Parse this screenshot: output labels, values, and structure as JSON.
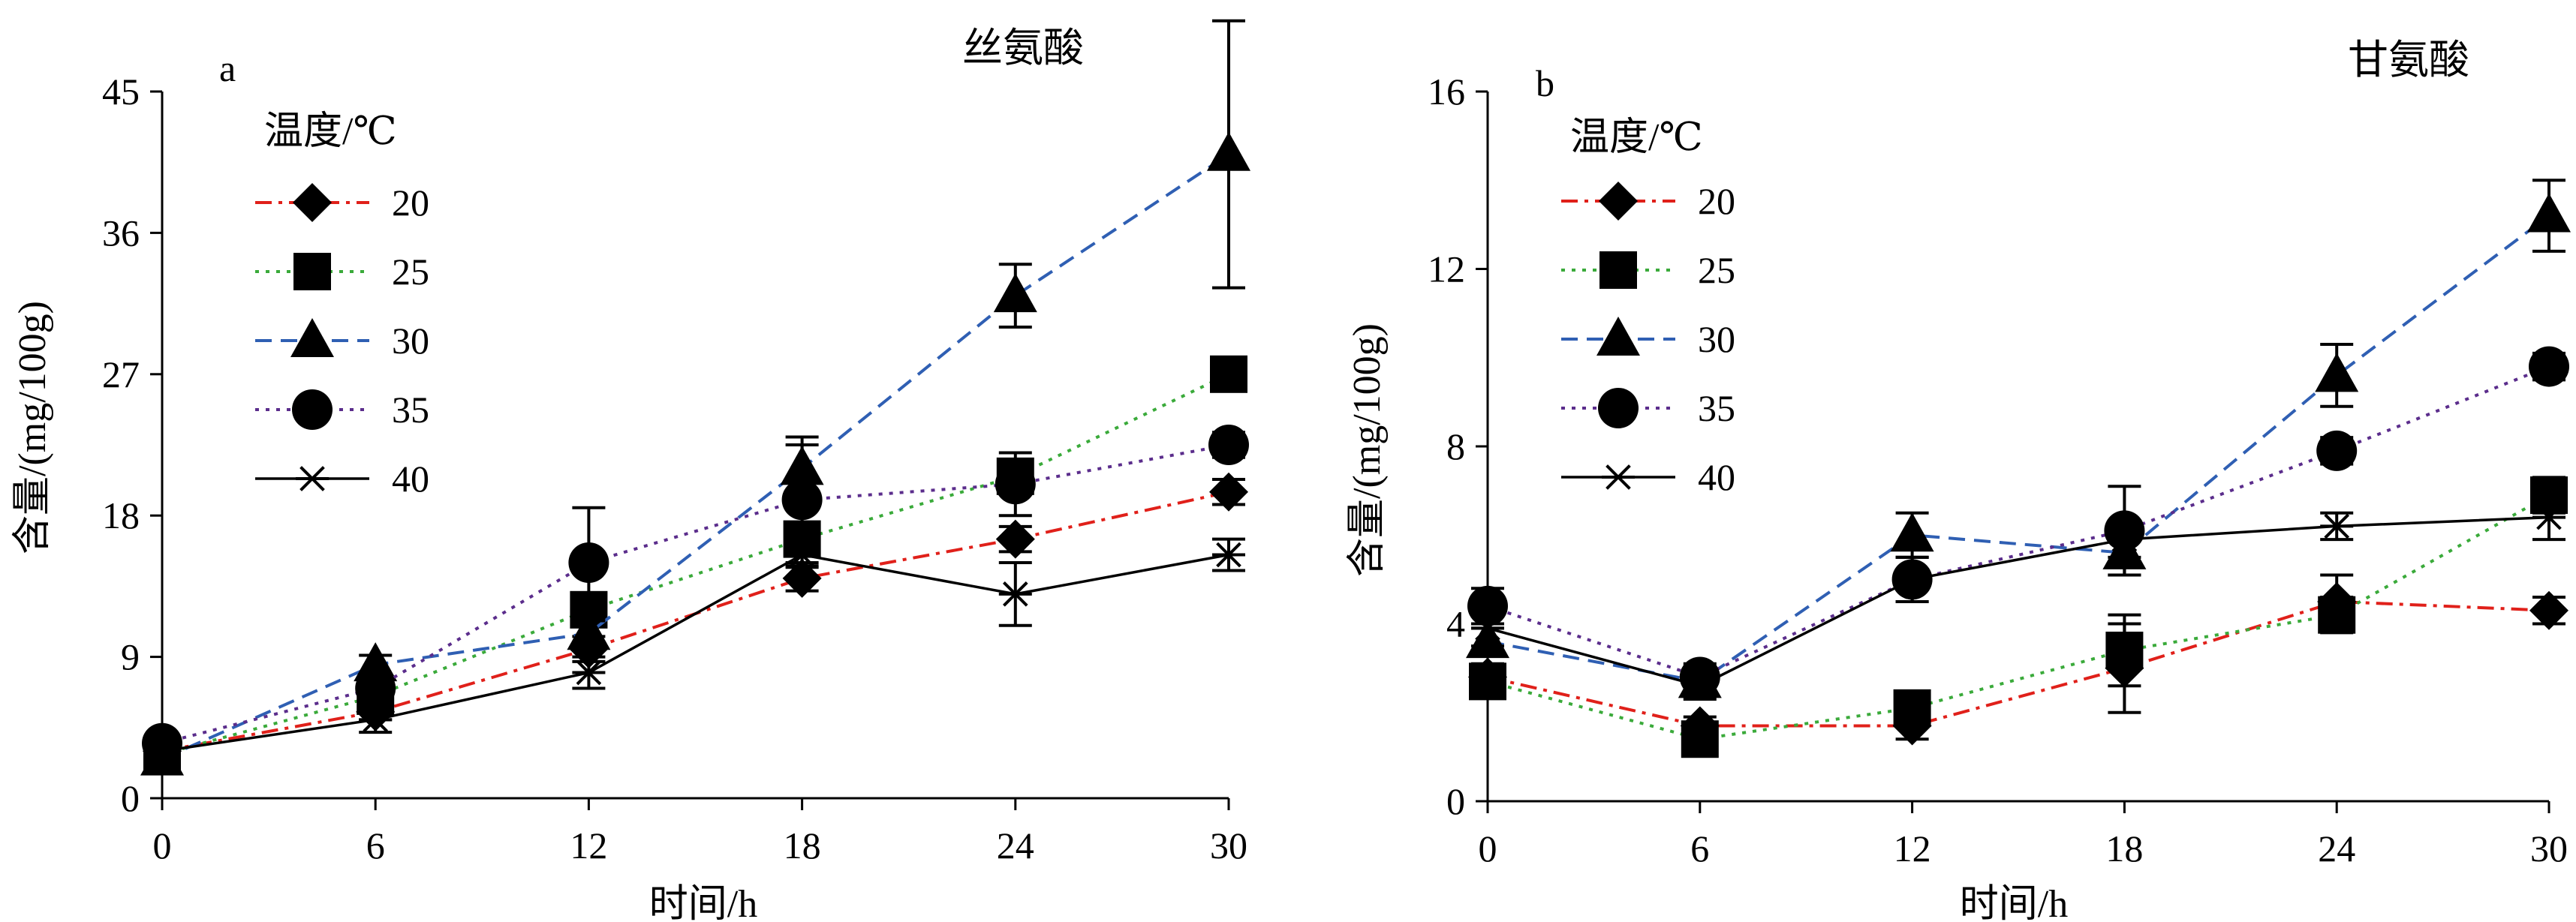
{
  "chart_data": [
    {
      "type": "line",
      "panel": "a",
      "title": "丝氨酸",
      "xlabel": "时间/h",
      "ylabel": "含量/(mg/100g)",
      "x": [
        0,
        6,
        12,
        18,
        24,
        30
      ],
      "x_ticks": [
        "0",
        "6",
        "12",
        "18",
        "24",
        "30"
      ],
      "xlim": [
        0,
        30
      ],
      "ylim": [
        0,
        45
      ],
      "y_ticks": [
        "0",
        "9",
        "18",
        "27",
        "36",
        "45"
      ],
      "y_tick_values": [
        0,
        9,
        18,
        27,
        36,
        45
      ],
      "legend_title": "温度/℃",
      "legend_placement": "top-left",
      "grid": false,
      "series": [
        {
          "name": "20",
          "marker": "diamond",
          "color": "#e0201a",
          "dash": "dashdot",
          "values": [
            3.0,
            5.5,
            9.5,
            14.0,
            16.5,
            19.5
          ],
          "errors": [
            0.3,
            0.5,
            0.8,
            0.8,
            0.8,
            0.8
          ]
        },
        {
          "name": "25",
          "marker": "square",
          "color": "#3aaa3a",
          "dash": "dotted",
          "values": [
            2.8,
            6.5,
            12.0,
            16.5,
            20.5,
            27.0
          ],
          "errors": [
            0.3,
            0.6,
            1.0,
            1.0,
            1.0,
            1.0
          ]
        },
        {
          "name": "30",
          "marker": "triangle",
          "color": "#2f5fb3",
          "dash": "dashed",
          "values": [
            2.5,
            8.5,
            10.5,
            21.0,
            32.0,
            41.0
          ],
          "errors": [
            0.3,
            0.6,
            0.8,
            1.5,
            2.0,
            8.5
          ]
        },
        {
          "name": "35",
          "marker": "circle",
          "color": "#5b2d8c",
          "dash": "dotted",
          "values": [
            3.5,
            7.0,
            15.0,
            19.0,
            20.0,
            22.5
          ],
          "errors": [
            0.3,
            0.6,
            3.5,
            4.0,
            2.0,
            0.8
          ]
        },
        {
          "name": "40",
          "marker": "asterisk",
          "color": "#000000",
          "dash": "solid",
          "values": [
            3.0,
            5.0,
            8.0,
            15.5,
            13.0,
            15.5
          ],
          "errors": [
            0.3,
            0.8,
            1.0,
            0.8,
            2.0,
            1.0
          ]
        }
      ]
    },
    {
      "type": "line",
      "panel": "b",
      "title": "甘氨酸",
      "xlabel": "时间/h",
      "ylabel": "含量/(mg/100g)",
      "x": [
        0,
        6,
        12,
        18,
        24,
        30
      ],
      "x_ticks": [
        "0",
        "6",
        "12",
        "18",
        "24",
        "30"
      ],
      "xlim": [
        0,
        30
      ],
      "ylim": [
        0,
        16
      ],
      "y_ticks": [
        "0",
        "4",
        "8",
        "12",
        "16"
      ],
      "y_tick_values": [
        0,
        4,
        8,
        12,
        16
      ],
      "legend_title": "温度/℃",
      "legend_placement": "top-left",
      "grid": false,
      "series": [
        {
          "name": "20",
          "marker": "diamond",
          "color": "#e0201a",
          "dash": "dashdot",
          "values": [
            2.8,
            1.7,
            1.7,
            3.0,
            4.5,
            4.3
          ],
          "errors": [
            0.3,
            0.2,
            0.3,
            1.0,
            0.6,
            0.3
          ]
        },
        {
          "name": "25",
          "marker": "square",
          "color": "#3aaa3a",
          "dash": "dotted",
          "values": [
            2.7,
            1.4,
            2.1,
            3.4,
            4.2,
            6.9
          ],
          "errors": [
            0.3,
            0.2,
            0.3,
            0.8,
            0.4,
            0.4
          ]
        },
        {
          "name": "30",
          "marker": "triangle",
          "color": "#2f5fb3",
          "dash": "dashed",
          "values": [
            3.6,
            2.7,
            6.0,
            5.6,
            9.6,
            13.2
          ],
          "errors": [
            0.3,
            0.3,
            0.5,
            0.5,
            0.7,
            0.8
          ]
        },
        {
          "name": "35",
          "marker": "circle",
          "color": "#5b2d8c",
          "dash": "dotted",
          "values": [
            4.4,
            2.8,
            5.0,
            6.1,
            7.9,
            9.8
          ],
          "errors": [
            0.4,
            0.3,
            0.5,
            1.0,
            0.3,
            0.3
          ]
        },
        {
          "name": "40",
          "marker": "asterisk",
          "color": "#000000",
          "dash": "solid",
          "values": [
            3.9,
            2.6,
            5.0,
            5.9,
            6.2,
            6.4
          ],
          "errors": [
            0.4,
            0.3,
            0.5,
            0.4,
            0.3,
            0.5
          ]
        }
      ]
    }
  ]
}
